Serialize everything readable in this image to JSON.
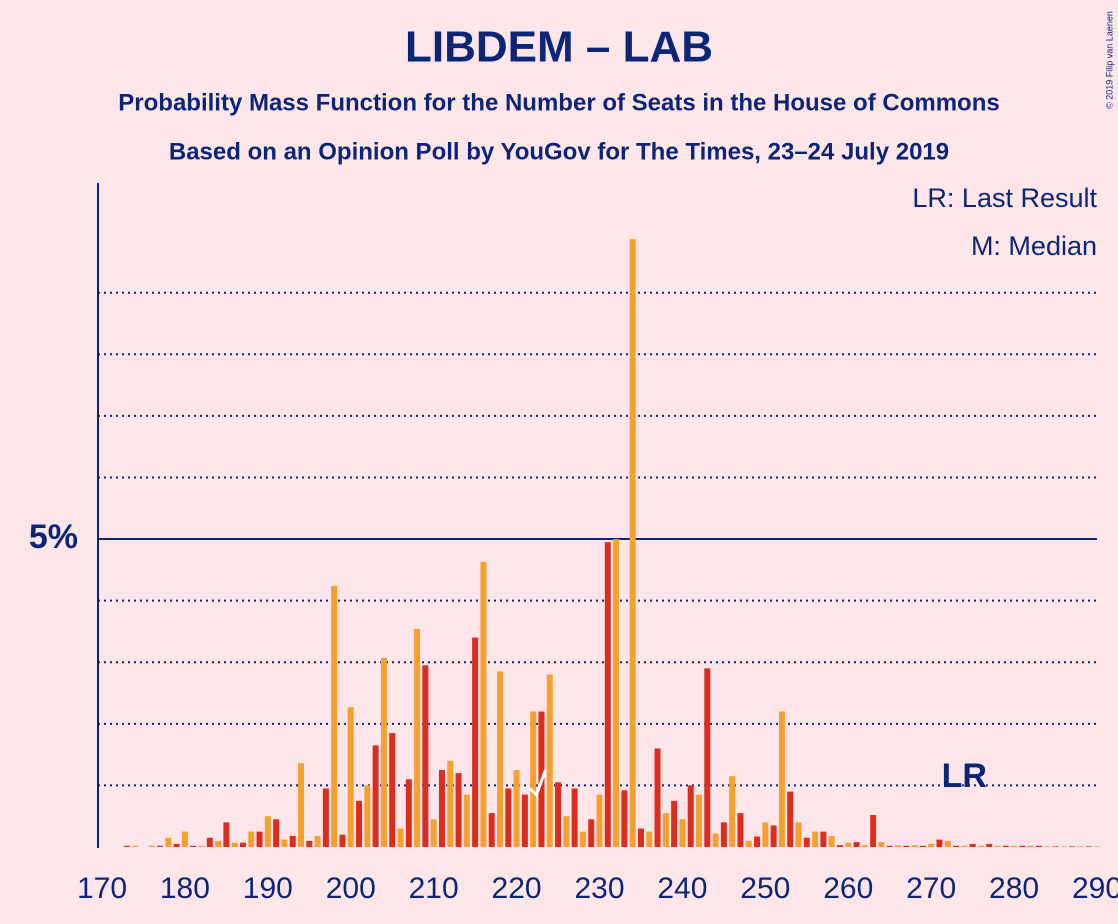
{
  "chart_data": {
    "type": "bar",
    "title": "LIBDEM – LAB",
    "subtitle": "Probability Mass Function for the Number of Seats in the House of Commons",
    "subtitle2": "Based on an Opinion Poll by YouGov for The Times, 23–24 July 2019",
    "legend_notes": [
      "LR: Last Result",
      "M: Median"
    ],
    "credit": "© 2019 Filip van Laenen",
    "last_result": {
      "x": 274,
      "label": "LR"
    },
    "median": 223,
    "xlim": [
      170,
      290
    ],
    "xticks": [
      170,
      180,
      190,
      200,
      210,
      220,
      230,
      240,
      250,
      260,
      270,
      280,
      290
    ],
    "ylim": [
      0,
      10.7
    ],
    "yticks": [
      {
        "value": 5,
        "label": "5%"
      }
    ],
    "minor_gridlines": [
      1,
      2,
      3,
      4,
      6,
      7,
      8,
      9
    ],
    "series": [
      {
        "color": "#dc2d1e",
        "x": [
          171,
          173,
          175,
          177,
          179,
          181,
          183,
          185,
          187,
          189,
          191,
          193,
          195,
          197,
          199,
          201,
          203,
          205,
          207,
          209,
          211,
          213,
          215,
          217,
          219,
          221,
          223,
          225,
          227,
          229,
          231,
          233,
          235,
          237,
          239,
          241,
          243,
          245,
          247,
          249,
          251,
          253,
          255,
          257,
          259,
          261,
          263,
          265,
          267,
          269,
          271,
          273,
          275,
          277,
          279,
          281,
          283,
          285,
          287,
          289
        ],
        "values": [
          0,
          0.02,
          0,
          0.02,
          0.05,
          0.02,
          0.15,
          0.4,
          0.07,
          0.25,
          0.45,
          0.18,
          0.1,
          0.95,
          0.2,
          0.75,
          1.65,
          1.85,
          1.1,
          2.95,
          1.25,
          1.2,
          3.4,
          0.55,
          0.95,
          0.85,
          2.2,
          1.05,
          0.95,
          0.45,
          4.95,
          0.92,
          0.3,
          1.6,
          0.75,
          1.0,
          2.9,
          0.4,
          0.55,
          0.17,
          0.35,
          0.9,
          0.15,
          0.25,
          0.03,
          0.08,
          0.52,
          0.02,
          0.02,
          0.02,
          0.12,
          0.02,
          0.05,
          0.05,
          0.02,
          0.02,
          0.02,
          0.01,
          0.01,
          0.01
        ]
      },
      {
        "color": "#f6a030",
        "x": [
          170,
          172,
          174,
          176,
          178,
          180,
          182,
          184,
          186,
          188,
          190,
          192,
          194,
          196,
          198,
          200,
          202,
          204,
          206,
          208,
          210,
          212,
          214,
          216,
          218,
          220,
          222,
          224,
          226,
          228,
          230,
          232,
          234,
          236,
          238,
          240,
          242,
          244,
          246,
          248,
          250,
          252,
          254,
          256,
          258,
          260,
          262,
          264,
          266,
          268,
          270,
          272,
          274,
          276,
          278,
          280,
          282,
          284,
          286,
          288,
          290
        ],
        "values": [
          0,
          0,
          0.02,
          0.02,
          0.15,
          0.25,
          0.02,
          0.1,
          0.07,
          0.25,
          0.5,
          0.12,
          1.36,
          0.18,
          4.24,
          2.27,
          1.0,
          3.07,
          0.3,
          3.54,
          0.45,
          1.4,
          0.85,
          4.63,
          2.85,
          1.25,
          2.2,
          2.8,
          0.5,
          0.25,
          0.85,
          5.0,
          9.87,
          0.25,
          0.55,
          0.45,
          0.85,
          0.22,
          1.15,
          0.1,
          0.4,
          2.2,
          0.4,
          0.25,
          0.18,
          0.07,
          0.03,
          0.08,
          0.03,
          0.03,
          0.05,
          0.1,
          0.02,
          0.02,
          0.02,
          0.02,
          0.02,
          0.01,
          0.01,
          0.01,
          0.01
        ]
      }
    ]
  }
}
